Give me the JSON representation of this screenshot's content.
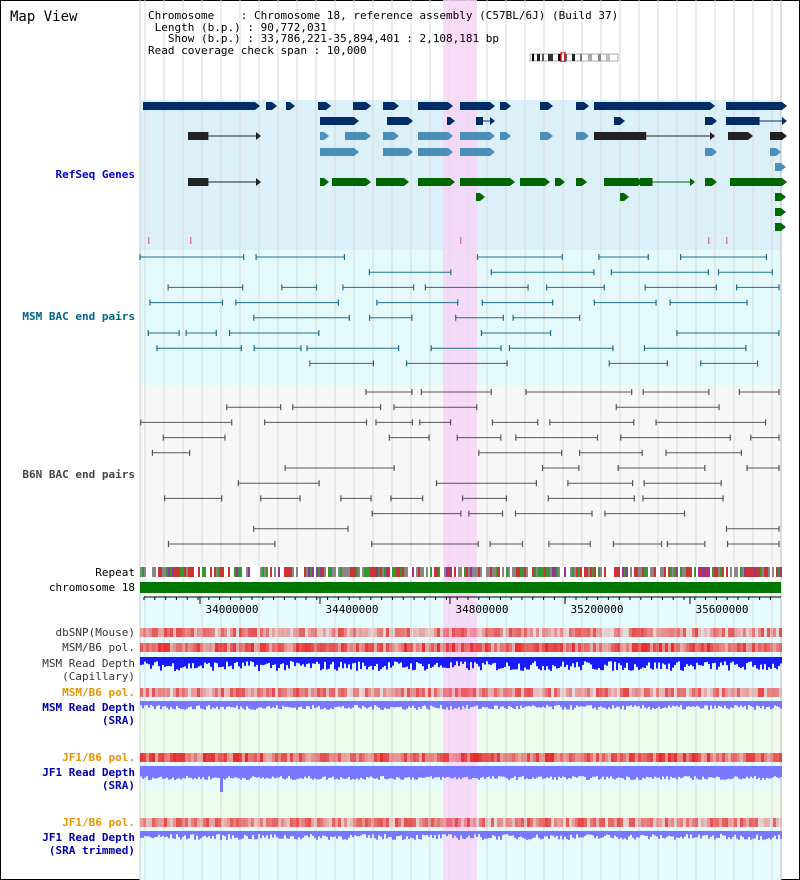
{
  "view": {
    "title": "Map View",
    "info": {
      "chromosome_key": "Chromosome",
      "chromosome_val": "Chromosome 18, reference assembly (C57BL/6J) (Build 37)",
      "length_key": "Length (b.p.)",
      "length_val": "90,772,031",
      "show_key": "Show (b.p.)",
      "show_val": "33,786,221-35,894,401 : 2,108,181 bp",
      "span_key": "Read coverage check span",
      "span_val": "10,000"
    }
  },
  "tracks": {
    "refseq": "RefSeq Genes",
    "msm_bac": "MSM BAC end pairs",
    "b6n_bac": "B6N BAC end pairs",
    "repeat": "Repeat",
    "chromosome": "chromosome 18",
    "dbsnp": "dbSNP(Mouse)",
    "msm_b6_pol_1": "MSM/B6 pol.",
    "msm_depth_cap_1": "MSM Read Depth",
    "msm_depth_cap_2": "(Capillary)",
    "msm_b6_pol_2": "MSM/B6 pol.",
    "msm_depth_sra_1": "MSM Read Depth",
    "msm_depth_sra_2": "(SRA)",
    "jf1_b6_pol_1": "JF1/B6 pol.",
    "jf1_depth_sra_1": "JF1 Read Depth",
    "jf1_depth_sra_2": "(SRA)",
    "jf1_b6_pol_2": "JF1/B6 pol.",
    "jf1_depth_trim_1": "JF1 Read Depth",
    "jf1_depth_trim_2": "(SRA trimmed)"
  },
  "ruler": {
    "ticks": [
      "34000000",
      "34400000",
      "34800000",
      "35200000",
      "35600000"
    ]
  },
  "colors": {
    "refseq_label": "#0000cc",
    "msm_label": "#006688",
    "b6n_label": "#444444",
    "gene_dark": "#002d66",
    "gene_mid": "#4b8fb8",
    "gene_green": "#006600",
    "bac_msm": "#226d8a",
    "bac_b6n": "#555555",
    "highlight": "#f6d5f6",
    "depth_dark": "#1a1aff",
    "depth_light": "#7777ff",
    "orange_label": "#e69500"
  }
}
